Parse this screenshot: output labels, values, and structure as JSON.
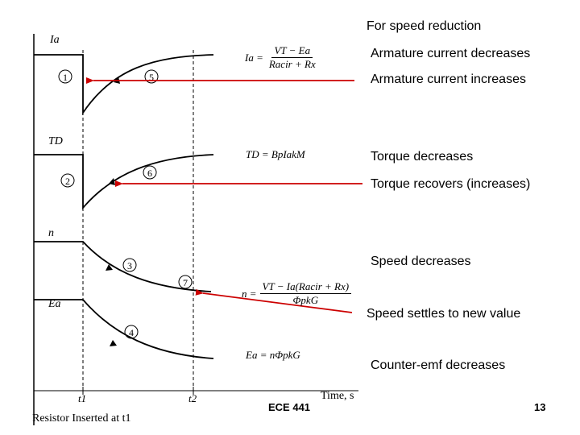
{
  "heading": "For speed reduction",
  "annotations": {
    "armature_decreases": "Armature current decreases",
    "armature_increases": "Armature current increases",
    "torque_decreases": "Torque decreases",
    "torque_recovers": "Torque recovers (increases)",
    "speed_decreases": "Speed decreases",
    "speed_settles": "Speed settles to new value",
    "emf_decreases": "Counter-emf decreases"
  },
  "axis_labels": {
    "ia": "Ia",
    "td": "TD",
    "n": "n",
    "ea": "Ea",
    "t1": "t1",
    "t2": "t2",
    "time": "Time, s"
  },
  "markers": [
    "1",
    "2",
    "3",
    "4",
    "5",
    "6",
    "7"
  ],
  "equations": {
    "ia_lhs": "Ia =",
    "ia_num": "VT − Ea",
    "ia_den": "Racir + Rx",
    "td": "TD = BpIakM",
    "n_lhs": "n =",
    "n_num": "VT − Ia(Racir + Rx)",
    "n_den": "ΦpkG",
    "ea": "Ea = nΦpkG"
  },
  "caption": "Resistor Inserted at t1",
  "footer": {
    "course": "ECE 441",
    "page": "13"
  },
  "colors": {
    "arrow": "#cc0000",
    "curve": "#000000"
  }
}
